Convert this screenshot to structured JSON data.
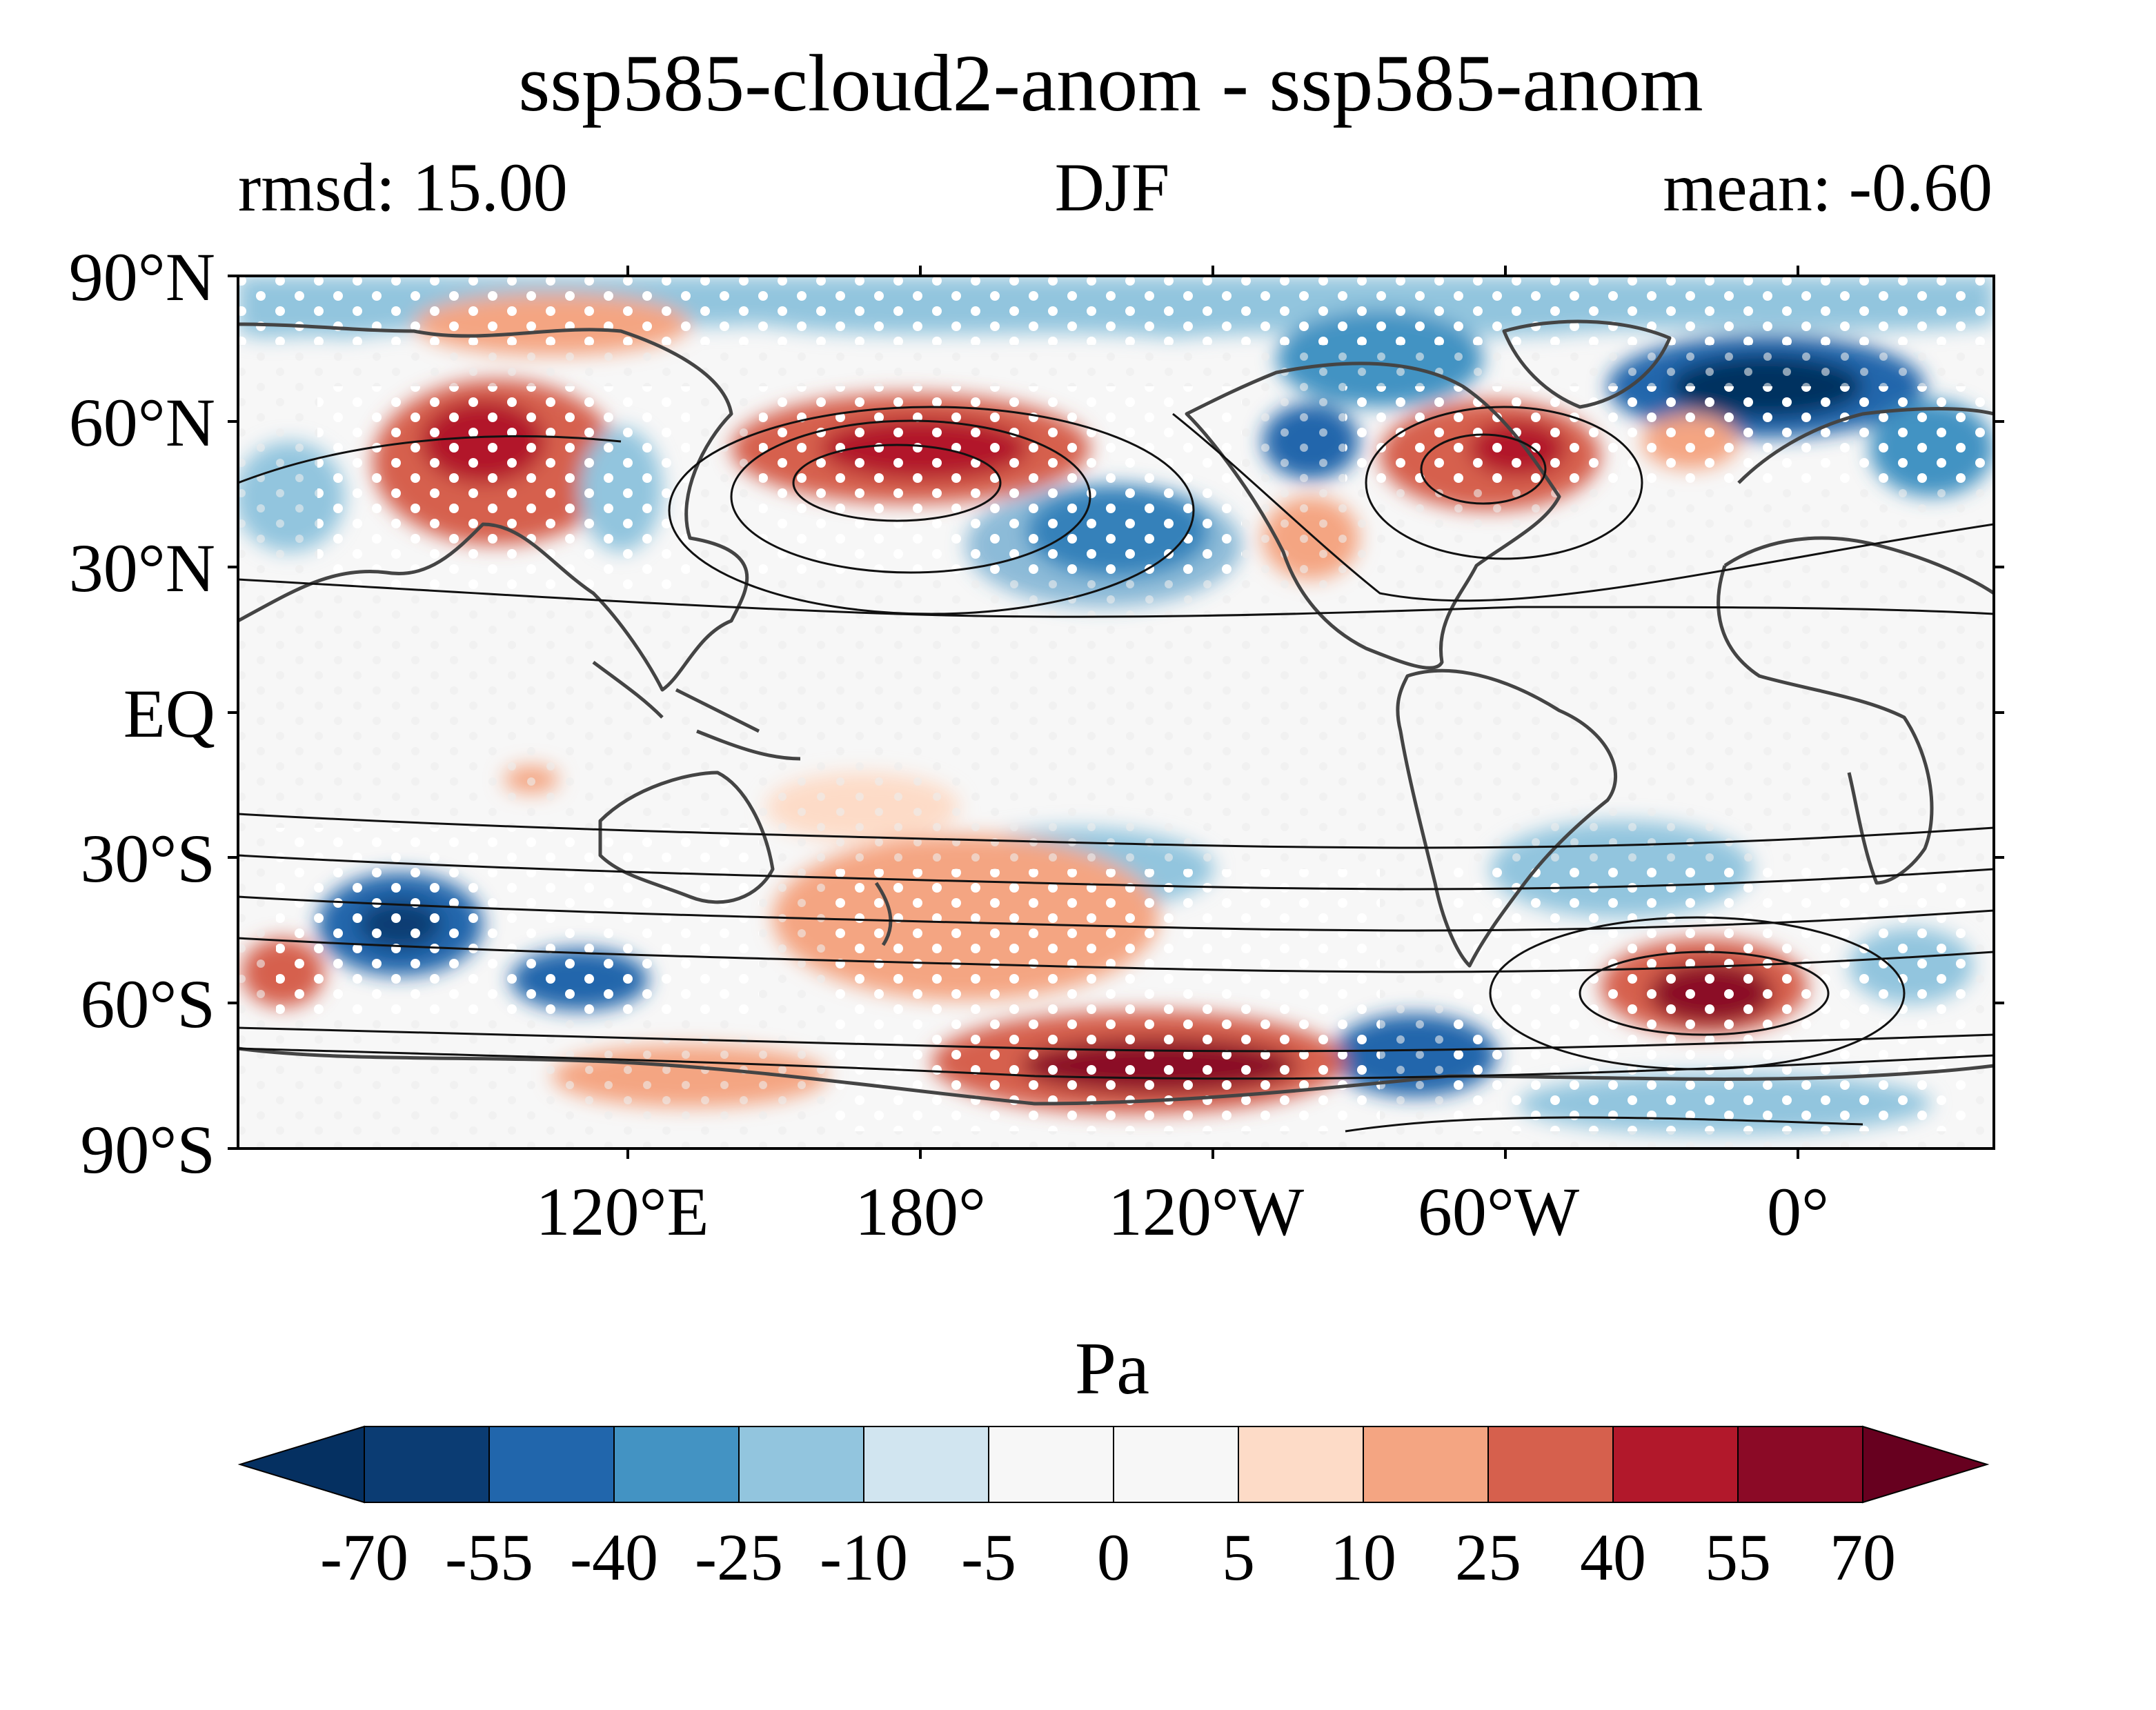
{
  "title": "ssp585-cloud2-anom - ssp585-anom",
  "subtitle_left": "rmsd: 15.00",
  "subtitle_center": "DJF",
  "subtitle_right": "mean: -0.60",
  "lat_ticks": [
    "90°N",
    "60°N",
    "30°N",
    "EQ",
    "30°S",
    "60°S",
    "90°S"
  ],
  "lon_ticks": [
    "120°E",
    "180°",
    "120°W",
    "60°W",
    "0°"
  ],
  "colorbar": {
    "label": "Pa",
    "ticks": [
      "-70",
      "-55",
      "-40",
      "-25",
      "-10",
      "-5",
      "0",
      "5",
      "10",
      "25",
      "40",
      "55",
      "70"
    ],
    "colors": [
      "#053061",
      "#0b3c73",
      "#2166ac",
      "#4393c3",
      "#92c5de",
      "#d1e5f0",
      "#f7f7f7",
      "#f7f7f7",
      "#fddbc7",
      "#f4a582",
      "#d6604d",
      "#b2182b",
      "#8b0a26",
      "#67001f"
    ]
  },
  "map": {
    "projection": "PlateCarree",
    "lon_range": [
      40,
      400
    ],
    "lat_range": [
      -90,
      90
    ],
    "hatching": "white dots mark significant regions"
  }
}
